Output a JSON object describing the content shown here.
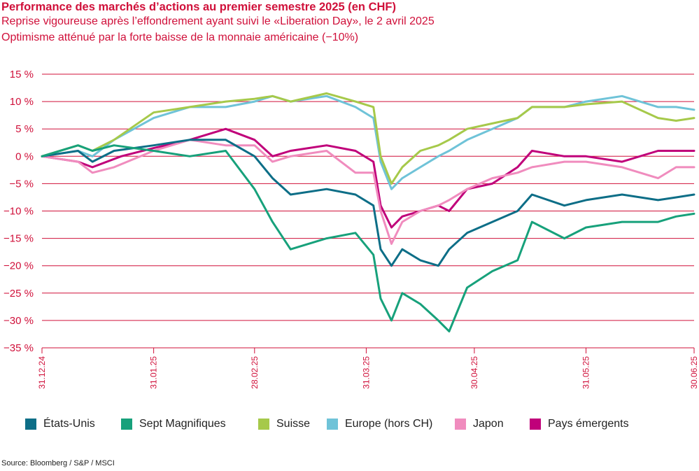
{
  "title": "Performance des marchés d’actions au premier semestre 2025 (en CHF)",
  "subtitle_1": "Reprise vigoureuse après l’effondrement ayant suivi le «Liberation Day», le 2 avril 2025",
  "subtitle_2": "Optimisme atténué par la forte baisse de la monnaie américaine (−10%)",
  "source": "Source: Bloomberg / S&P / MSCI",
  "colors": {
    "text": "#d0103a",
    "gridline": "#d0103a"
  },
  "chart_data": {
    "type": "line",
    "x_axis_type": "date",
    "xlim": [
      "2024-12-31",
      "2025-06-30"
    ],
    "ylim": [
      -35,
      15
    ],
    "grid": "horizontal",
    "legend_position": "bottom",
    "y_ticks": [
      {
        "value": 15,
        "label": "15 %"
      },
      {
        "value": 10,
        "label": "10 %"
      },
      {
        "value": 5,
        "label": "5 %"
      },
      {
        "value": 0,
        "label": "0 %"
      },
      {
        "value": -5,
        "label": "−5 %"
      },
      {
        "value": -10,
        "label": "−10 %"
      },
      {
        "value": -15,
        "label": "−15 %"
      },
      {
        "value": -20,
        "label": "−20 %"
      },
      {
        "value": -25,
        "label": "−25 %"
      },
      {
        "value": -30,
        "label": "−30 %"
      },
      {
        "value": -35,
        "label": "−35 %"
      }
    ],
    "x_ticks": [
      {
        "date": "2024-12-31",
        "label": "31.12.24"
      },
      {
        "date": "2025-01-31",
        "label": "31.01.25"
      },
      {
        "date": "2025-02-28",
        "label": "28.02.25"
      },
      {
        "date": "2025-03-31",
        "label": "31.03.25"
      },
      {
        "date": "2025-04-30",
        "label": "30.04.25"
      },
      {
        "date": "2025-05-31",
        "label": "31.05.25"
      },
      {
        "date": "2025-06-30",
        "label": "30.06.25"
      }
    ],
    "series": [
      {
        "name": "Pays émergents",
        "color": "#c0007a",
        "points": [
          [
            "2024-12-31",
            0
          ],
          [
            "2025-01-10",
            -1
          ],
          [
            "2025-01-14",
            -2
          ],
          [
            "2025-01-22",
            0
          ],
          [
            "2025-01-31",
            1.5
          ],
          [
            "2025-02-10",
            3
          ],
          [
            "2025-02-20",
            5
          ],
          [
            "2025-02-28",
            3
          ],
          [
            "2025-03-05",
            0
          ],
          [
            "2025-03-10",
            1
          ],
          [
            "2025-03-20",
            2
          ],
          [
            "2025-03-28",
            1
          ],
          [
            "2025-04-02",
            -1
          ],
          [
            "2025-04-04",
            -9
          ],
          [
            "2025-04-07",
            -13
          ],
          [
            "2025-04-10",
            -11
          ],
          [
            "2025-04-15",
            -10
          ],
          [
            "2025-04-20",
            -9
          ],
          [
            "2025-04-23",
            -10
          ],
          [
            "2025-04-28",
            -6
          ],
          [
            "2025-05-05",
            -5
          ],
          [
            "2025-05-12",
            -2
          ],
          [
            "2025-05-16",
            1
          ],
          [
            "2025-05-25",
            0
          ],
          [
            "2025-05-31",
            0
          ],
          [
            "2025-06-10",
            -1
          ],
          [
            "2025-06-20",
            1
          ],
          [
            "2025-06-25",
            1
          ],
          [
            "2025-06-30",
            1
          ]
        ]
      },
      {
        "name": "Japon",
        "color": "#f08cbe",
        "points": [
          [
            "2024-12-31",
            0
          ],
          [
            "2025-01-10",
            -1
          ],
          [
            "2025-01-14",
            -3
          ],
          [
            "2025-01-20",
            -2
          ],
          [
            "2025-01-31",
            1
          ],
          [
            "2025-02-10",
            3
          ],
          [
            "2025-02-20",
            2
          ],
          [
            "2025-02-28",
            2
          ],
          [
            "2025-03-05",
            -1
          ],
          [
            "2025-03-10",
            0
          ],
          [
            "2025-03-20",
            1
          ],
          [
            "2025-03-28",
            -3
          ],
          [
            "2025-04-02",
            -3
          ],
          [
            "2025-04-04",
            -10
          ],
          [
            "2025-04-07",
            -16
          ],
          [
            "2025-04-10",
            -12
          ],
          [
            "2025-04-15",
            -10
          ],
          [
            "2025-04-20",
            -9
          ],
          [
            "2025-04-23",
            -8
          ],
          [
            "2025-04-28",
            -6
          ],
          [
            "2025-05-05",
            -4
          ],
          [
            "2025-05-12",
            -3
          ],
          [
            "2025-05-16",
            -2
          ],
          [
            "2025-05-25",
            -1
          ],
          [
            "2025-05-31",
            -1
          ],
          [
            "2025-06-10",
            -2
          ],
          [
            "2025-06-20",
            -4
          ],
          [
            "2025-06-25",
            -2
          ],
          [
            "2025-06-30",
            -2
          ]
        ]
      },
      {
        "name": "Europe (hors CH)",
        "color": "#6fc3d8",
        "points": [
          [
            "2024-12-31",
            0
          ],
          [
            "2025-01-10",
            1
          ],
          [
            "2025-01-14",
            0
          ],
          [
            "2025-01-20",
            3
          ],
          [
            "2025-01-31",
            7
          ],
          [
            "2025-02-10",
            9
          ],
          [
            "2025-02-20",
            9
          ],
          [
            "2025-02-28",
            10
          ],
          [
            "2025-03-05",
            11
          ],
          [
            "2025-03-10",
            10
          ],
          [
            "2025-03-20",
            11
          ],
          [
            "2025-03-28",
            9
          ],
          [
            "2025-04-02",
            7
          ],
          [
            "2025-04-04",
            -1
          ],
          [
            "2025-04-07",
            -6
          ],
          [
            "2025-04-10",
            -4
          ],
          [
            "2025-04-15",
            -2
          ],
          [
            "2025-04-20",
            0
          ],
          [
            "2025-04-23",
            1
          ],
          [
            "2025-04-28",
            3
          ],
          [
            "2025-05-05",
            5
          ],
          [
            "2025-05-12",
            7
          ],
          [
            "2025-05-16",
            9
          ],
          [
            "2025-05-25",
            9
          ],
          [
            "2025-05-31",
            10
          ],
          [
            "2025-06-10",
            11
          ],
          [
            "2025-06-20",
            9
          ],
          [
            "2025-06-25",
            9
          ],
          [
            "2025-06-30",
            8.5
          ]
        ]
      },
      {
        "name": "Suisse",
        "color": "#a6c94a",
        "points": [
          [
            "2024-12-31",
            0
          ],
          [
            "2025-01-10",
            2
          ],
          [
            "2025-01-14",
            1
          ],
          [
            "2025-01-20",
            3
          ],
          [
            "2025-01-31",
            8
          ],
          [
            "2025-02-10",
            9
          ],
          [
            "2025-02-20",
            10
          ],
          [
            "2025-02-28",
            10.5
          ],
          [
            "2025-03-05",
            11
          ],
          [
            "2025-03-10",
            10
          ],
          [
            "2025-03-20",
            11.5
          ],
          [
            "2025-03-28",
            10
          ],
          [
            "2025-04-02",
            9
          ],
          [
            "2025-04-04",
            0
          ],
          [
            "2025-04-07",
            -5
          ],
          [
            "2025-04-10",
            -2
          ],
          [
            "2025-04-15",
            1
          ],
          [
            "2025-04-20",
            2
          ],
          [
            "2025-04-23",
            3
          ],
          [
            "2025-04-28",
            5
          ],
          [
            "2025-05-05",
            6
          ],
          [
            "2025-05-12",
            7
          ],
          [
            "2025-05-16",
            9
          ],
          [
            "2025-05-25",
            9
          ],
          [
            "2025-05-31",
            9.5
          ],
          [
            "2025-06-10",
            10
          ],
          [
            "2025-06-20",
            7
          ],
          [
            "2025-06-25",
            6.5
          ],
          [
            "2025-06-30",
            7
          ]
        ]
      },
      {
        "name": "États-Unis",
        "color": "#0d6e87",
        "points": [
          [
            "2024-12-31",
            0
          ],
          [
            "2025-01-10",
            1
          ],
          [
            "2025-01-14",
            -1
          ],
          [
            "2025-01-20",
            1
          ],
          [
            "2025-01-31",
            2
          ],
          [
            "2025-02-10",
            3
          ],
          [
            "2025-02-20",
            3
          ],
          [
            "2025-02-28",
            0
          ],
          [
            "2025-03-05",
            -4
          ],
          [
            "2025-03-10",
            -7
          ],
          [
            "2025-03-20",
            -6
          ],
          [
            "2025-03-28",
            -7
          ],
          [
            "2025-04-02",
            -9
          ],
          [
            "2025-04-04",
            -17
          ],
          [
            "2025-04-07",
            -20
          ],
          [
            "2025-04-10",
            -17
          ],
          [
            "2025-04-15",
            -19
          ],
          [
            "2025-04-20",
            -20
          ],
          [
            "2025-04-23",
            -17
          ],
          [
            "2025-04-28",
            -14
          ],
          [
            "2025-05-05",
            -12
          ],
          [
            "2025-05-12",
            -10
          ],
          [
            "2025-05-16",
            -7
          ],
          [
            "2025-05-25",
            -9
          ],
          [
            "2025-05-31",
            -8
          ],
          [
            "2025-06-10",
            -7
          ],
          [
            "2025-06-20",
            -8
          ],
          [
            "2025-06-25",
            -7.5
          ],
          [
            "2025-06-30",
            -7
          ]
        ]
      },
      {
        "name": "Sept Magnifiques",
        "color": "#17a17b",
        "points": [
          [
            "2024-12-31",
            0
          ],
          [
            "2025-01-10",
            2
          ],
          [
            "2025-01-14",
            1
          ],
          [
            "2025-01-20",
            2
          ],
          [
            "2025-01-31",
            1
          ],
          [
            "2025-02-10",
            0
          ],
          [
            "2025-02-20",
            1
          ],
          [
            "2025-02-28",
            -6
          ],
          [
            "2025-03-05",
            -12
          ],
          [
            "2025-03-10",
            -17
          ],
          [
            "2025-03-20",
            -15
          ],
          [
            "2025-03-28",
            -14
          ],
          [
            "2025-04-02",
            -18
          ],
          [
            "2025-04-04",
            -26
          ],
          [
            "2025-04-07",
            -30
          ],
          [
            "2025-04-10",
            -25
          ],
          [
            "2025-04-15",
            -27
          ],
          [
            "2025-04-20",
            -30
          ],
          [
            "2025-04-23",
            -32
          ],
          [
            "2025-04-28",
            -24
          ],
          [
            "2025-05-05",
            -21
          ],
          [
            "2025-05-12",
            -19
          ],
          [
            "2025-05-16",
            -12
          ],
          [
            "2025-05-25",
            -15
          ],
          [
            "2025-05-31",
            -13
          ],
          [
            "2025-06-10",
            -12
          ],
          [
            "2025-06-20",
            -12
          ],
          [
            "2025-06-25",
            -11
          ],
          [
            "2025-06-30",
            -10.5
          ]
        ]
      }
    ]
  },
  "legend": [
    {
      "label": "États-Unis",
      "color": "#0d6e87"
    },
    {
      "label": "Sept Magnifiques",
      "color": "#17a17b"
    },
    {
      "label": "Suisse",
      "color": "#a6c94a"
    },
    {
      "label": "Europe (hors CH)",
      "color": "#6fc3d8"
    },
    {
      "label": "Japon",
      "color": "#f08cbe"
    },
    {
      "label": "Pays émergents",
      "color": "#c0007a"
    }
  ]
}
